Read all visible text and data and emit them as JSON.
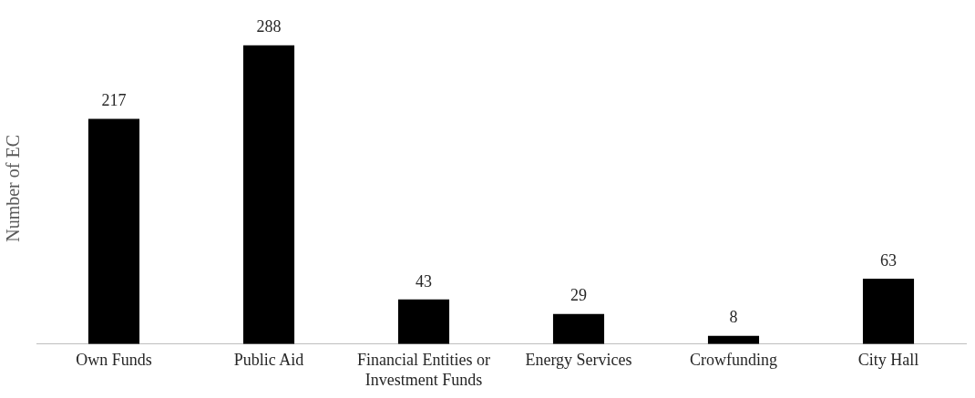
{
  "chart_data": {
    "type": "bar",
    "ylabel": "Number of EC",
    "categories": [
      "Own Funds",
      "Public Aid",
      "Financial Entities or Investment Funds",
      "Energy Services",
      "Crowfunding",
      "City Hall"
    ],
    "values": [
      217,
      288,
      43,
      29,
      8,
      63
    ],
    "color": "#000000",
    "data_labels": true,
    "grid": false,
    "legend": false
  }
}
